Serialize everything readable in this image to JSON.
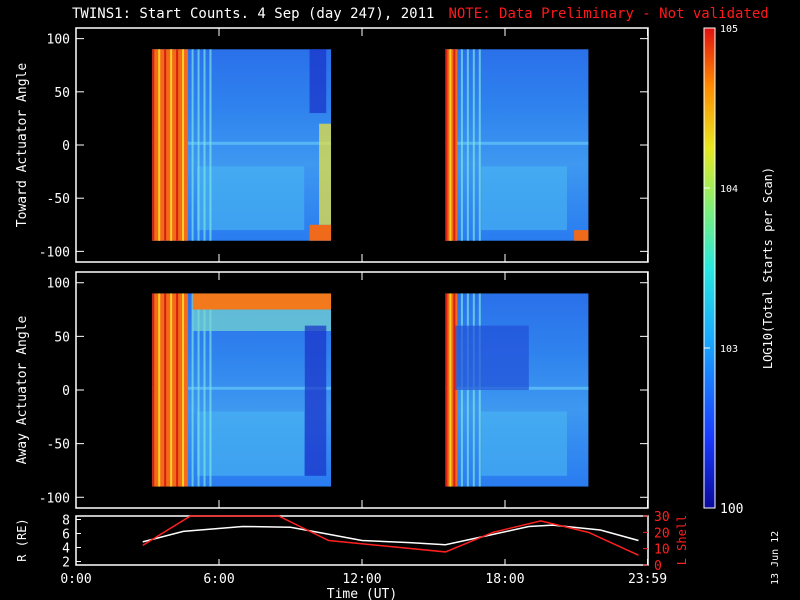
{
  "title": "TWINS1: Start Counts.  4 Sep (day 247), 2011",
  "note": "NOTE: Data Preliminary - Not validated",
  "datestamp": "13 Jun 12",
  "colors": {
    "note": "#ff1a1a",
    "frame": "#ffffff",
    "background": "#000000",
    "lshell": "#ff2020",
    "radius": "#ffffff"
  },
  "colorbar": {
    "label": "LOG10(Total Starts per Scan)",
    "ticks": [
      "100",
      "10^3",
      "10^4",
      "10^5"
    ],
    "tick_values": [
      100,
      1000,
      10000,
      100000
    ],
    "range": [
      100,
      100000
    ],
    "scale": "log"
  },
  "x_axis": {
    "label": "Time (UT)",
    "ticks": [
      "0:00",
      "6:00",
      "12:00",
      "18:00",
      "23:59"
    ],
    "tick_hours": [
      0,
      6,
      12,
      18,
      23.98
    ],
    "range": [
      0,
      24
    ]
  },
  "panels": [
    {
      "id": "toward",
      "ylabel": "Toward Actuator Angle",
      "yticks": [
        "100",
        "50",
        "0",
        "-50",
        "-100"
      ],
      "ytick_values": [
        100,
        50,
        0,
        -50,
        -100
      ],
      "ylim": [
        -110,
        110
      ]
    },
    {
      "id": "away",
      "ylabel": "Away Actuator Angle",
      "yticks": [
        "100",
        "50",
        "0",
        "-50",
        "-100"
      ],
      "ytick_values": [
        100,
        50,
        0,
        -50,
        -100
      ],
      "ylim": [
        -110,
        110
      ]
    }
  ],
  "orbit": {
    "left_label": "R (RE)",
    "right_label": "L Shell",
    "left_ticks": [
      "8",
      "6",
      "4",
      "2"
    ],
    "left_tick_values": [
      8,
      6,
      4,
      2
    ],
    "left_range": [
      1.5,
      8.5
    ],
    "right_ticks": [
      "30",
      "20",
      "10",
      "0"
    ],
    "right_tick_values": [
      30,
      20,
      10,
      0
    ],
    "right_range": [
      0,
      30
    ]
  },
  "chart_data": {
    "type": "heatmap",
    "title": "TWINS1: Start Counts.  4 Sep (day 247), 2011",
    "x_unit": "hour UT",
    "y_range": [
      -90,
      90
    ],
    "data_intervals": [
      [
        3.2,
        10.7
      ],
      [
        15.5,
        21.5
      ]
    ],
    "scale": "log",
    "panels": [
      {
        "name": "Toward Actuator Angle",
        "typical_counts": 700,
        "high_count_regions": [
          "3.2-4.7 h all angles",
          "10.2-10.7 h near -90",
          "15.5-16.0 h all angles",
          "21.0-21.5 h near -90"
        ]
      },
      {
        "name": "Away Actuator Angle",
        "typical_counts": 600,
        "high_count_regions": [
          "3.2-4.9 h all angles",
          "4.9-10.7 h near +90",
          "15.5-15.9 h all angles"
        ]
      }
    ],
    "series": [
      {
        "name": "R",
        "x": [
          2.8,
          4.5,
          7.0,
          9.0,
          10.6,
          12.0,
          14.0,
          15.5,
          17.0,
          19.0,
          20.0,
          22.0,
          23.6
        ],
        "y": [
          4.8,
          6.3,
          7.0,
          6.9,
          5.9,
          5.0,
          4.7,
          4.4,
          5.5,
          7.0,
          7.2,
          6.5,
          5.0
        ]
      },
      {
        "name": "L Shell",
        "x": [
          2.8,
          4.8,
          8.5,
          10.6,
          15.5,
          17.5,
          19.5,
          21.5,
          23.6
        ],
        "y": [
          12,
          30,
          30,
          15,
          8,
          20,
          27,
          20,
          6
        ]
      }
    ]
  }
}
